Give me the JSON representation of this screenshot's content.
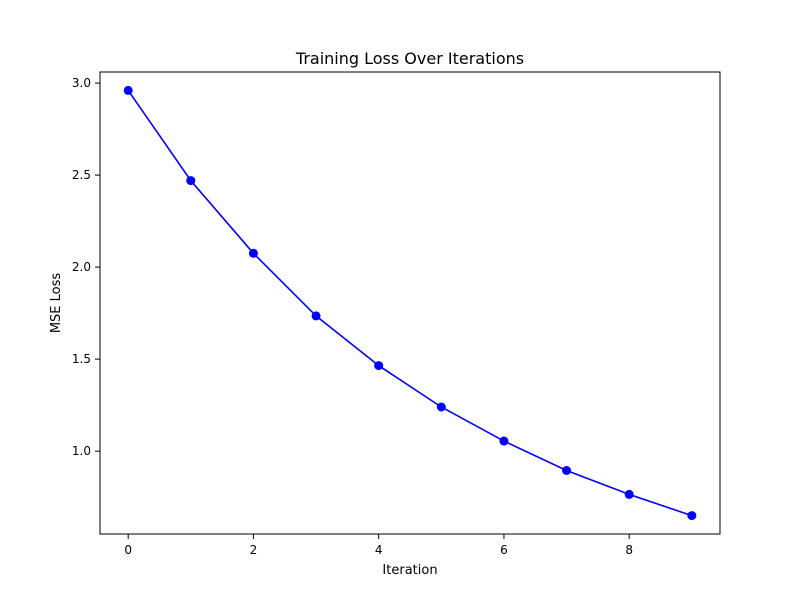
{
  "chart_data": {
    "type": "line",
    "title": "Training Loss Over Iterations",
    "xlabel": "Iteration",
    "ylabel": "MSE Loss",
    "x": [
      0,
      1,
      2,
      3,
      4,
      5,
      6,
      7,
      8,
      9
    ],
    "series": [
      {
        "values": [
          2.96,
          2.47,
          2.075,
          1.735,
          1.465,
          1.24,
          1.055,
          0.895,
          0.765,
          0.65
        ],
        "color": "#0000ff",
        "marker": "circle"
      }
    ],
    "xlim": [
      -0.45,
      9.45
    ],
    "ylim": [
      0.55,
      3.06
    ],
    "xticks": [
      0,
      2,
      4,
      6,
      8
    ],
    "xtick_labels": [
      "0",
      "2",
      "4",
      "6",
      "8"
    ],
    "yticks": [
      1.0,
      1.5,
      2.0,
      2.5,
      3.0
    ],
    "ytick_labels": [
      "1.0",
      "1.5",
      "2.0",
      "2.5",
      "3.0"
    ],
    "grid": false,
    "legend": "none"
  }
}
